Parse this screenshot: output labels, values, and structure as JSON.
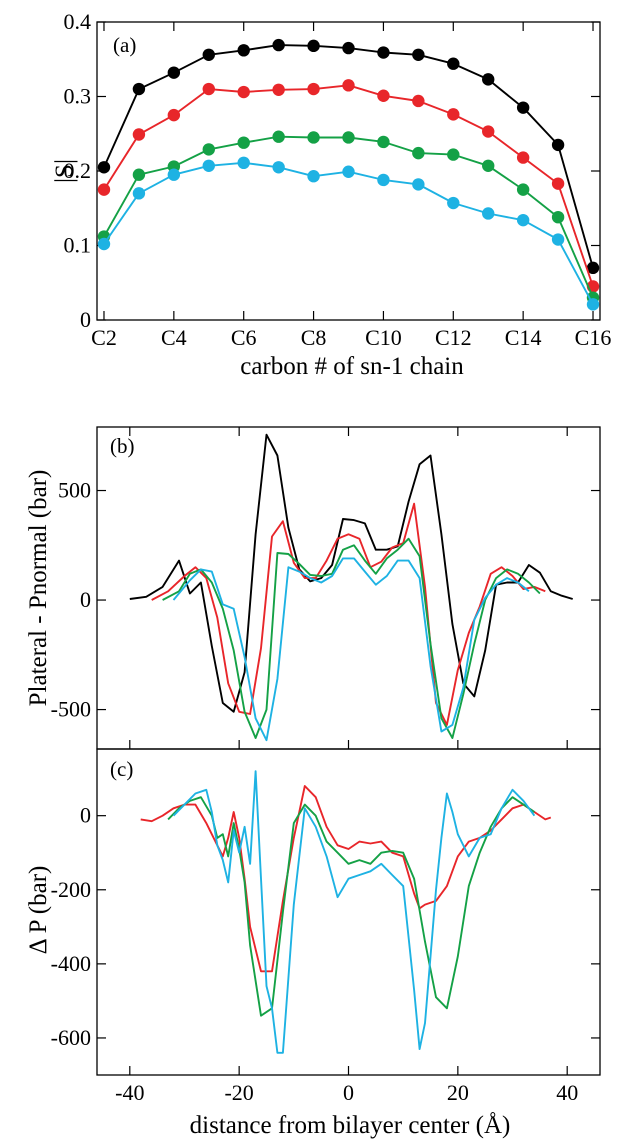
{
  "chart_data": [
    {
      "type": "line",
      "panel_label": "(a)",
      "ylabel": "|S|",
      "xlabel": "carbon # of sn-1 chain",
      "x": [
        2,
        3,
        4,
        5,
        6,
        7,
        8,
        9,
        10,
        11,
        12,
        13,
        14,
        15,
        16
      ],
      "xlim": [
        1.8,
        16.2
      ],
      "ylim": [
        0,
        0.4
      ],
      "x_ticks": [
        2,
        4,
        6,
        8,
        10,
        12,
        14,
        16
      ],
      "x_tick_labels": [
        "C2",
        "C4",
        "C6",
        "C8",
        "C10",
        "C12",
        "C14",
        "C16"
      ],
      "y_ticks": [
        0,
        0.1,
        0.2,
        0.3,
        0.4
      ],
      "y_tick_labels": [
        "0",
        "0.1",
        "0.2",
        "0.3",
        "0.4"
      ],
      "markers": true,
      "series": [
        {
          "color": "#000000",
          "values": [
            0.205,
            0.31,
            0.332,
            0.356,
            0.362,
            0.369,
            0.368,
            0.365,
            0.359,
            0.356,
            0.344,
            0.323,
            0.285,
            0.235,
            0.07
          ]
        },
        {
          "color": "#e8262a",
          "values": [
            0.175,
            0.249,
            0.275,
            0.31,
            0.306,
            0.309,
            0.31,
            0.315,
            0.301,
            0.294,
            0.276,
            0.253,
            0.218,
            0.183,
            0.045
          ]
        },
        {
          "color": "#14a146",
          "values": [
            0.112,
            0.195,
            0.206,
            0.229,
            0.238,
            0.246,
            0.245,
            0.245,
            0.239,
            0.224,
            0.222,
            0.207,
            0.175,
            0.138,
            0.03
          ]
        },
        {
          "color": "#1eb2e3",
          "values": [
            0.102,
            0.17,
            0.195,
            0.207,
            0.211,
            0.205,
            0.193,
            0.199,
            0.188,
            0.182,
            0.157,
            0.143,
            0.134,
            0.108,
            0.021
          ]
        }
      ]
    },
    {
      "type": "line",
      "panel_label": "(b)",
      "ylabel": "Plateral - Pnormal (bar)",
      "xlim": [
        -46,
        46
      ],
      "ylim": [
        -680,
        790
      ],
      "y_ticks": [
        -500,
        0,
        500
      ],
      "y_tick_labels": [
        "-500",
        "0",
        "500"
      ],
      "series": [
        {
          "color": "#000000",
          "x": [
            -40,
            -37,
            -34,
            -31,
            -29,
            -27,
            -25,
            -23,
            -21,
            -19,
            -17,
            -15,
            -13,
            -11,
            -9,
            -7,
            -5,
            -3,
            -1,
            1,
            3,
            5,
            7,
            9,
            11,
            13,
            15,
            17,
            19,
            21,
            23,
            25,
            27,
            29,
            31,
            33,
            35,
            37,
            39,
            41
          ],
          "values": [
            5,
            15,
            60,
            180,
            30,
            80,
            -210,
            -470,
            -510,
            -330,
            300,
            755,
            660,
            330,
            140,
            85,
            100,
            160,
            370,
            365,
            350,
            230,
            230,
            245,
            450,
            620,
            660,
            300,
            -110,
            -380,
            -440,
            -230,
            70,
            80,
            80,
            160,
            125,
            40,
            20,
            5
          ]
        },
        {
          "color": "#e8262a",
          "x": [
            -36,
            -33,
            -30,
            -28,
            -26,
            -24,
            -22,
            -20,
            -18,
            -16,
            -14,
            -12,
            -10,
            -8,
            -6,
            -4,
            -2,
            0,
            2,
            4,
            6,
            8,
            10,
            12,
            14,
            16,
            18,
            20,
            22,
            24,
            26,
            28,
            30,
            32,
            34,
            36
          ],
          "values": [
            0,
            40,
            110,
            150,
            100,
            -80,
            -380,
            -510,
            -520,
            -220,
            290,
            360,
            170,
            100,
            100,
            180,
            280,
            300,
            280,
            150,
            175,
            240,
            260,
            440,
            60,
            -470,
            -570,
            -320,
            -150,
            -30,
            120,
            150,
            110,
            50,
            60,
            40
          ]
        },
        {
          "color": "#14a146",
          "x": [
            -34,
            -31,
            -29,
            -27,
            -25,
            -23,
            -21,
            -19,
            -17,
            -15,
            -13,
            -11,
            -9,
            -7,
            -5,
            -3,
            -1,
            1,
            3,
            5,
            7,
            9,
            11,
            13,
            15,
            17,
            19,
            21,
            23,
            25,
            27,
            29,
            31,
            33,
            35
          ],
          "values": [
            0,
            40,
            120,
            140,
            80,
            -40,
            -230,
            -510,
            -630,
            -500,
            215,
            210,
            165,
            115,
            110,
            120,
            230,
            250,
            180,
            120,
            190,
            230,
            280,
            200,
            -200,
            -540,
            -630,
            -430,
            -200,
            0,
            100,
            140,
            120,
            80,
            30
          ]
        },
        {
          "color": "#1eb2e3",
          "x": [
            -32,
            -29,
            -27,
            -25,
            -23,
            -21,
            -19,
            -17,
            -15,
            -13,
            -11,
            -9,
            -7,
            -5,
            -3,
            -1,
            1,
            3,
            5,
            7,
            9,
            11,
            13,
            15,
            17,
            19,
            21,
            23,
            25,
            27,
            29,
            31,
            33
          ],
          "values": [
            0,
            90,
            140,
            130,
            -20,
            -40,
            -260,
            -540,
            -640,
            -360,
            150,
            130,
            100,
            80,
            110,
            190,
            190,
            130,
            70,
            110,
            180,
            180,
            100,
            -300,
            -600,
            -570,
            -400,
            -90,
            10,
            70,
            100,
            80,
            40
          ]
        }
      ]
    },
    {
      "type": "line",
      "panel_label": "(c)",
      "ylabel": "Δ P (bar)",
      "xlabel": "distance from bilayer center (Å)",
      "xlim": [
        -46,
        46
      ],
      "ylim": [
        -700,
        180
      ],
      "x_ticks": [
        -40,
        -20,
        0,
        20,
        40
      ],
      "x_tick_labels": [
        "-40",
        "-20",
        "0",
        "20",
        "40"
      ],
      "y_ticks": [
        -600,
        -400,
        -200,
        0
      ],
      "y_tick_labels": [
        "-600",
        "-400",
        "-200",
        "0"
      ],
      "series": [
        {
          "color": "#e8262a",
          "x": [
            -38,
            -36,
            -34,
            -32,
            -30,
            -28,
            -26,
            -24,
            -23,
            -22,
            -21,
            -20,
            -19,
            -18,
            -16,
            -14,
            -12,
            -10,
            -8,
            -6,
            -4,
            -2,
            0,
            2,
            4,
            6,
            8,
            10,
            12,
            13,
            14,
            16,
            18,
            20,
            22,
            24,
            26,
            28,
            30,
            32,
            34,
            36,
            37
          ],
          "values": [
            -10,
            -15,
            0,
            20,
            30,
            30,
            -20,
            -80,
            -110,
            -60,
            10,
            -60,
            -170,
            -300,
            -420,
            -420,
            -230,
            -60,
            80,
            50,
            -30,
            -80,
            -90,
            -70,
            -75,
            -70,
            -100,
            -110,
            -210,
            -250,
            -240,
            -230,
            -190,
            -110,
            -70,
            -60,
            -40,
            -10,
            20,
            30,
            10,
            -10,
            -5
          ]
        },
        {
          "color": "#14a146",
          "x": [
            -33,
            -31,
            -29,
            -27,
            -25,
            -24,
            -23,
            -22,
            -21,
            -20,
            -19,
            -18,
            -16,
            -14,
            -12,
            -10,
            -8,
            -6,
            -4,
            -2,
            0,
            2,
            4,
            6,
            8,
            10,
            12,
            14,
            16,
            18,
            20,
            22,
            24,
            26,
            28,
            30,
            32,
            34
          ],
          "values": [
            -10,
            20,
            40,
            50,
            0,
            -60,
            -50,
            -110,
            -20,
            -90,
            -180,
            -350,
            -540,
            -520,
            -260,
            -20,
            30,
            0,
            -70,
            -100,
            -130,
            -120,
            -130,
            -100,
            -95,
            -100,
            -170,
            -340,
            -490,
            -520,
            -380,
            -190,
            -100,
            -30,
            20,
            50,
            30,
            10
          ]
        },
        {
          "color": "#1eb2e3",
          "x": [
            -32,
            -30,
            -28,
            -26,
            -25,
            -24,
            -23,
            -22,
            -21,
            -20,
            -19,
            -18,
            -17,
            -16,
            -15,
            -14,
            -13,
            -12,
            -10,
            -8,
            -6,
            -4,
            -2,
            0,
            2,
            4,
            6,
            8,
            10,
            12,
            13,
            14,
            15,
            16,
            17,
            18,
            19,
            20,
            22,
            24,
            26,
            28,
            30,
            32,
            34
          ],
          "values": [
            0,
            30,
            60,
            70,
            10,
            -80,
            -120,
            -180,
            -40,
            -100,
            -30,
            -130,
            120,
            -170,
            -460,
            -520,
            -640,
            -640,
            -240,
            20,
            -30,
            -110,
            -220,
            -170,
            -160,
            -150,
            -130,
            -160,
            -190,
            -470,
            -630,
            -560,
            -380,
            -200,
            -60,
            60,
            10,
            -50,
            -110,
            -60,
            -50,
            20,
            70,
            40,
            0
          ]
        }
      ]
    }
  ]
}
